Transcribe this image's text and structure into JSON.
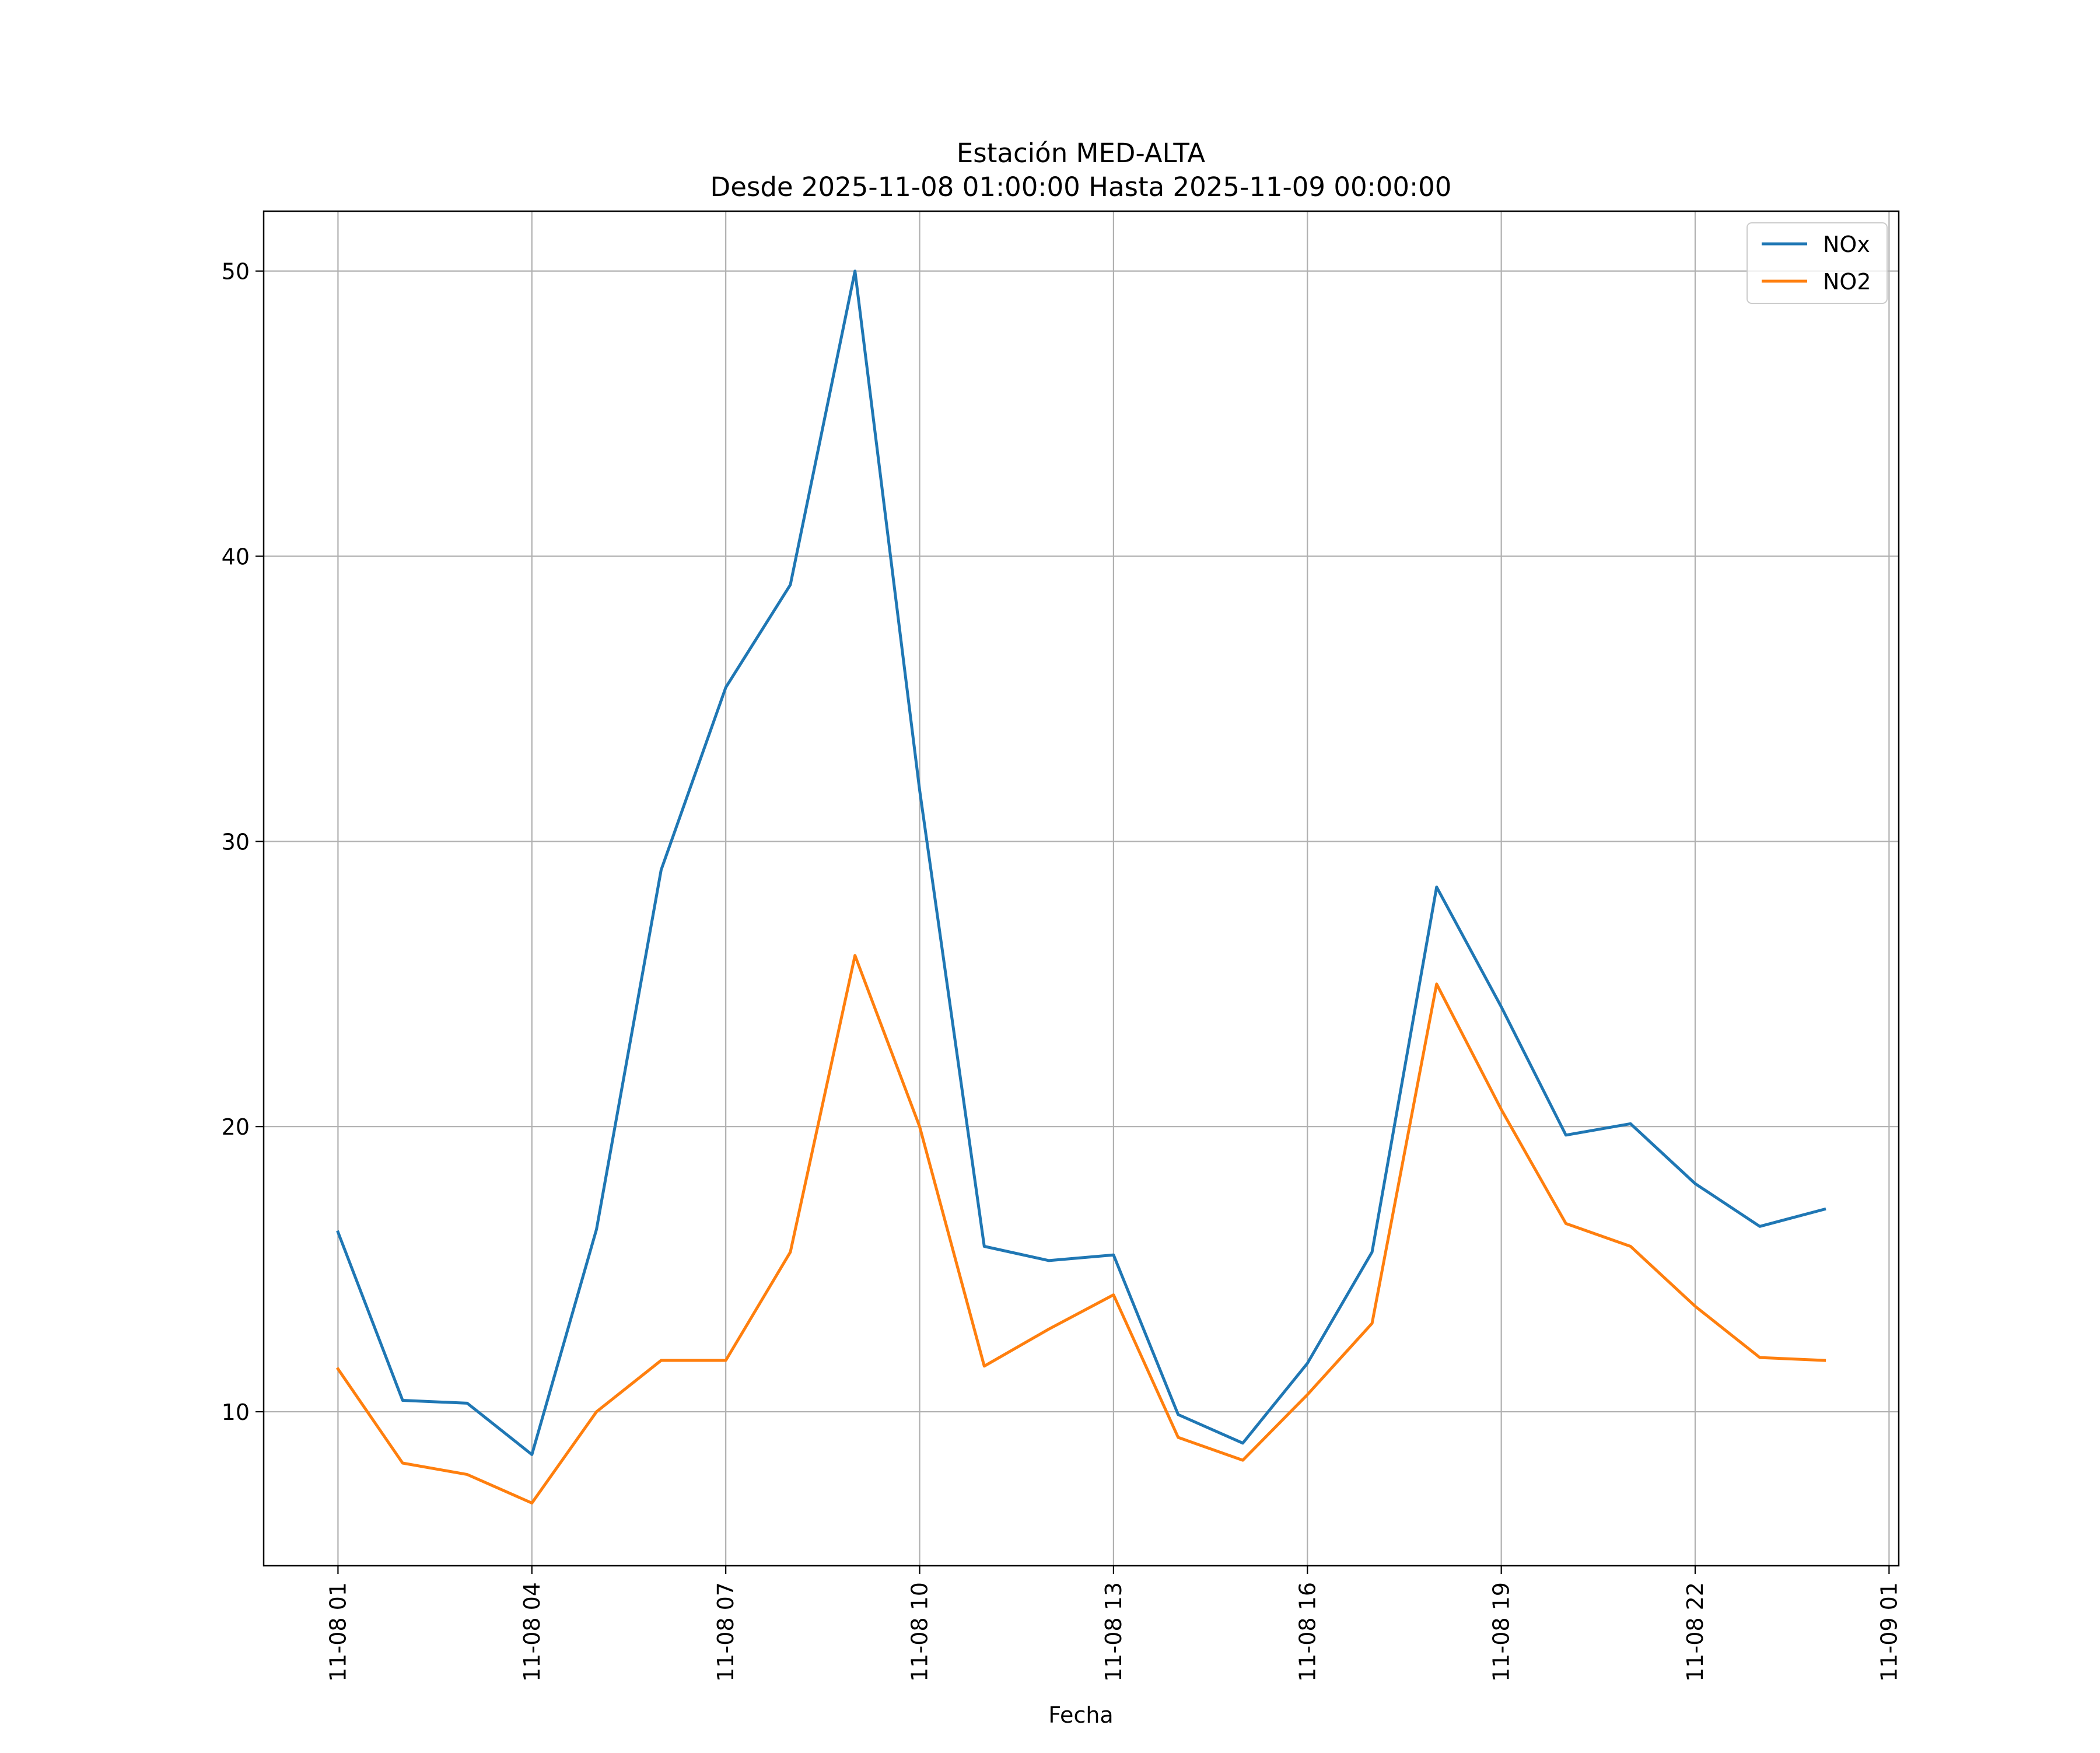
{
  "chart_data": {
    "type": "line",
    "title": "Estación MED-ALTA",
    "subtitle": "Desde 2025-11-08 01:00:00 Hasta 2025-11-09 00:00:00",
    "xlabel": "Fecha",
    "ylabel": "",
    "x": [
      "2025-11-08 01:00",
      "2025-11-08 02:00",
      "2025-11-08 03:00",
      "2025-11-08 04:00",
      "2025-11-08 05:00",
      "2025-11-08 06:00",
      "2025-11-08 07:00",
      "2025-11-08 08:00",
      "2025-11-08 09:00",
      "2025-11-08 10:00",
      "2025-11-08 11:00",
      "2025-11-08 12:00",
      "2025-11-08 13:00",
      "2025-11-08 14:00",
      "2025-11-08 15:00",
      "2025-11-08 16:00",
      "2025-11-08 17:00",
      "2025-11-08 18:00",
      "2025-11-08 19:00",
      "2025-11-08 20:00",
      "2025-11-08 21:00",
      "2025-11-08 22:00",
      "2025-11-08 23:00",
      "2025-11-09 00:00"
    ],
    "series": [
      {
        "name": "NOx",
        "color": "#1f77b4",
        "values": [
          16.3,
          10.4,
          10.3,
          8.5,
          16.4,
          29.0,
          35.4,
          39.0,
          50.0,
          31.8,
          15.8,
          15.3,
          15.5,
          9.9,
          8.9,
          11.7,
          15.6,
          28.4,
          24.2,
          19.7,
          20.1,
          18.0,
          16.5,
          17.1
        ]
      },
      {
        "name": "NO2",
        "color": "#ff7f0e",
        "values": [
          11.5,
          8.2,
          7.8,
          6.8,
          10.0,
          11.8,
          11.8,
          15.6,
          26.0,
          20.0,
          11.6,
          12.9,
          14.1,
          9.1,
          8.3,
          10.6,
          13.1,
          25.0,
          20.6,
          16.6,
          15.8,
          13.7,
          11.9,
          11.8
        ]
      }
    ],
    "xticks": [
      "11-08 01",
      "11-08 04",
      "11-08 07",
      "11-08 10",
      "11-08 13",
      "11-08 16",
      "11-08 19",
      "11-08 22",
      "11-09 01"
    ],
    "xtick_hours": [
      0,
      3,
      6,
      9,
      12,
      15,
      18,
      21,
      24
    ],
    "xlim_hours": [
      -1.15,
      24.15
    ],
    "yticks": [
      "10",
      "20",
      "30",
      "40",
      "50"
    ],
    "ytick_values": [
      10,
      20,
      30,
      40,
      50
    ],
    "ylim": [
      4.6,
      52.1
    ],
    "grid": true,
    "legend": "top-right"
  }
}
